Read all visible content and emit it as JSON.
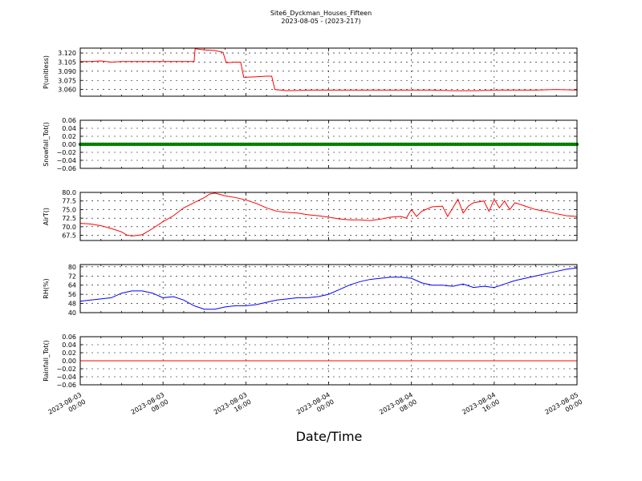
{
  "chart_data": {
    "type": "line",
    "title": "Site6_Dyckman_Houses_Fifteen",
    "subtitle": "2023-08-05 - (2023-217)",
    "xlabel": "Date/Time",
    "x_ticks": [
      [
        "2023-08-03",
        "00:00"
      ],
      [
        "2023-08-03",
        "08:00"
      ],
      [
        "2023-08-03",
        "16:00"
      ],
      [
        "2023-08-04",
        "00:00"
      ],
      [
        "2023-08-04",
        "08:00"
      ],
      [
        "2023-08-04",
        "16:00"
      ],
      [
        "2023-08-05",
        "00:00"
      ]
    ],
    "x_range_hours": [
      0,
      48
    ],
    "grid": true,
    "panels": [
      {
        "ylabel": "P(unitless)",
        "ylim": [
          3.049,
          3.128
        ],
        "yticks": [
          "3.060",
          "3.075",
          "3.090",
          "3.105",
          "3.120"
        ],
        "color": "#ff0000",
        "style": "line",
        "series": [
          [
            0,
            3.106
          ],
          [
            1,
            3.106
          ],
          [
            2,
            3.107
          ],
          [
            3,
            3.105
          ],
          [
            4,
            3.106
          ],
          [
            5,
            3.106
          ],
          [
            6,
            3.106
          ],
          [
            7,
            3.106
          ],
          [
            8,
            3.106
          ],
          [
            9,
            3.106
          ],
          [
            10,
            3.106
          ],
          [
            11,
            3.106
          ],
          [
            11.1,
            3.127
          ],
          [
            12,
            3.125
          ],
          [
            13,
            3.124
          ],
          [
            13.8,
            3.121
          ],
          [
            14.1,
            3.104
          ],
          [
            15,
            3.105
          ],
          [
            15.5,
            3.105
          ],
          [
            15.8,
            3.08
          ],
          [
            17,
            3.081
          ],
          [
            18,
            3.082
          ],
          [
            18.5,
            3.082
          ],
          [
            18.8,
            3.06
          ],
          [
            20,
            3.058
          ],
          [
            22,
            3.059
          ],
          [
            24,
            3.059
          ],
          [
            26,
            3.059
          ],
          [
            28,
            3.059
          ],
          [
            30,
            3.059
          ],
          [
            32,
            3.059
          ],
          [
            34,
            3.059
          ],
          [
            36,
            3.058
          ],
          [
            38,
            3.058
          ],
          [
            40,
            3.059
          ],
          [
            42,
            3.059
          ],
          [
            44,
            3.059
          ],
          [
            46,
            3.06
          ],
          [
            48,
            3.059
          ]
        ]
      },
      {
        "ylabel": "Snowfall_Tot()",
        "ylim": [
          -0.06,
          0.06
        ],
        "yticks": [
          "−0.06",
          "−0.04",
          "−0.02",
          "0.00",
          "0.02",
          "0.04",
          "0.06"
        ],
        "color": "#008000",
        "style": "markers",
        "series": [
          [
            0,
            0
          ],
          [
            48,
            0
          ]
        ]
      },
      {
        "ylabel": "AirT()",
        "ylim": [
          66.0,
          80.0
        ],
        "yticks": [
          "67.5",
          "70.0",
          "72.5",
          "75.0",
          "77.5",
          "80.0"
        ],
        "color": "#ff0000",
        "style": "line",
        "series": [
          [
            0,
            71.0
          ],
          [
            1,
            70.8
          ],
          [
            2,
            70.3
          ],
          [
            3,
            69.5
          ],
          [
            4,
            68.5
          ],
          [
            4.5,
            67.6
          ],
          [
            5,
            67.3
          ],
          [
            6,
            67.7
          ],
          [
            7,
            69.5
          ],
          [
            8,
            71.5
          ],
          [
            9,
            73.2
          ],
          [
            10,
            75.5
          ],
          [
            11,
            77.0
          ],
          [
            12,
            78.5
          ],
          [
            12.5,
            79.5
          ],
          [
            13,
            79.8
          ],
          [
            14,
            79.0
          ],
          [
            15,
            78.5
          ],
          [
            16,
            77.8
          ],
          [
            17,
            76.8
          ],
          [
            18,
            75.5
          ],
          [
            19,
            74.5
          ],
          [
            20,
            74.2
          ],
          [
            21,
            74.0
          ],
          [
            22,
            73.5
          ],
          [
            23,
            73.2
          ],
          [
            24,
            72.8
          ],
          [
            25,
            72.3
          ],
          [
            26,
            72.0
          ],
          [
            27,
            72.0
          ],
          [
            28,
            71.8
          ],
          [
            29,
            72.2
          ],
          [
            30,
            72.8
          ],
          [
            31,
            73.0
          ],
          [
            31.5,
            72.5
          ],
          [
            32,
            75.0
          ],
          [
            32.5,
            73.0
          ],
          [
            33,
            74.5
          ],
          [
            34,
            75.8
          ],
          [
            35,
            76.0
          ],
          [
            35.5,
            73.0
          ],
          [
            36,
            75.5
          ],
          [
            36.5,
            78.0
          ],
          [
            37,
            74.0
          ],
          [
            37.5,
            76.0
          ],
          [
            38,
            77.0
          ],
          [
            39,
            77.5
          ],
          [
            39.5,
            74.5
          ],
          [
            40,
            78.0
          ],
          [
            40.5,
            75.5
          ],
          [
            41,
            77.5
          ],
          [
            41.5,
            75.0
          ],
          [
            42,
            77.0
          ],
          [
            43,
            76.0
          ],
          [
            44,
            75.0
          ],
          [
            45,
            74.5
          ],
          [
            46,
            73.8
          ],
          [
            47,
            73.2
          ],
          [
            48,
            73.0
          ]
        ]
      },
      {
        "ylabel": "RH(%)",
        "ylim": [
          40,
          82
        ],
        "yticks": [
          "40",
          "48",
          "56",
          "64",
          "72",
          "80"
        ],
        "color": "#0000ff",
        "style": "line",
        "series": [
          [
            0,
            50
          ],
          [
            1,
            51
          ],
          [
            2,
            52
          ],
          [
            3,
            53
          ],
          [
            4,
            57
          ],
          [
            5,
            59
          ],
          [
            6,
            59
          ],
          [
            7,
            57
          ],
          [
            8,
            53
          ],
          [
            9,
            54
          ],
          [
            10,
            51
          ],
          [
            11,
            46
          ],
          [
            12,
            43
          ],
          [
            13,
            43
          ],
          [
            14,
            45
          ],
          [
            15,
            46
          ],
          [
            16,
            46
          ],
          [
            17,
            47
          ],
          [
            18,
            49
          ],
          [
            19,
            51
          ],
          [
            20,
            52
          ],
          [
            21,
            53
          ],
          [
            22,
            53
          ],
          [
            23,
            54
          ],
          [
            24,
            56
          ],
          [
            25,
            60
          ],
          [
            26,
            64
          ],
          [
            27,
            67
          ],
          [
            28,
            69
          ],
          [
            29,
            70
          ],
          [
            30,
            71
          ],
          [
            31,
            71
          ],
          [
            32,
            70
          ],
          [
            33,
            66
          ],
          [
            34,
            64
          ],
          [
            35,
            64
          ],
          [
            36,
            63
          ],
          [
            37,
            65
          ],
          [
            38,
            62
          ],
          [
            39,
            63
          ],
          [
            40,
            62
          ],
          [
            41,
            65
          ],
          [
            42,
            68
          ],
          [
            43,
            70
          ],
          [
            44,
            72
          ],
          [
            45,
            74
          ],
          [
            46,
            76
          ],
          [
            47,
            78
          ],
          [
            48,
            79
          ]
        ]
      },
      {
        "ylabel": "Rainfall_Tot()",
        "ylim": [
          -0.06,
          0.06
        ],
        "yticks": [
          "−0.06",
          "−0.04",
          "−0.02",
          "0.00",
          "0.02",
          "0.04",
          "0.06"
        ],
        "color": "#ff0000",
        "style": "line",
        "series": [
          [
            0,
            0
          ],
          [
            48,
            0
          ]
        ]
      }
    ]
  }
}
